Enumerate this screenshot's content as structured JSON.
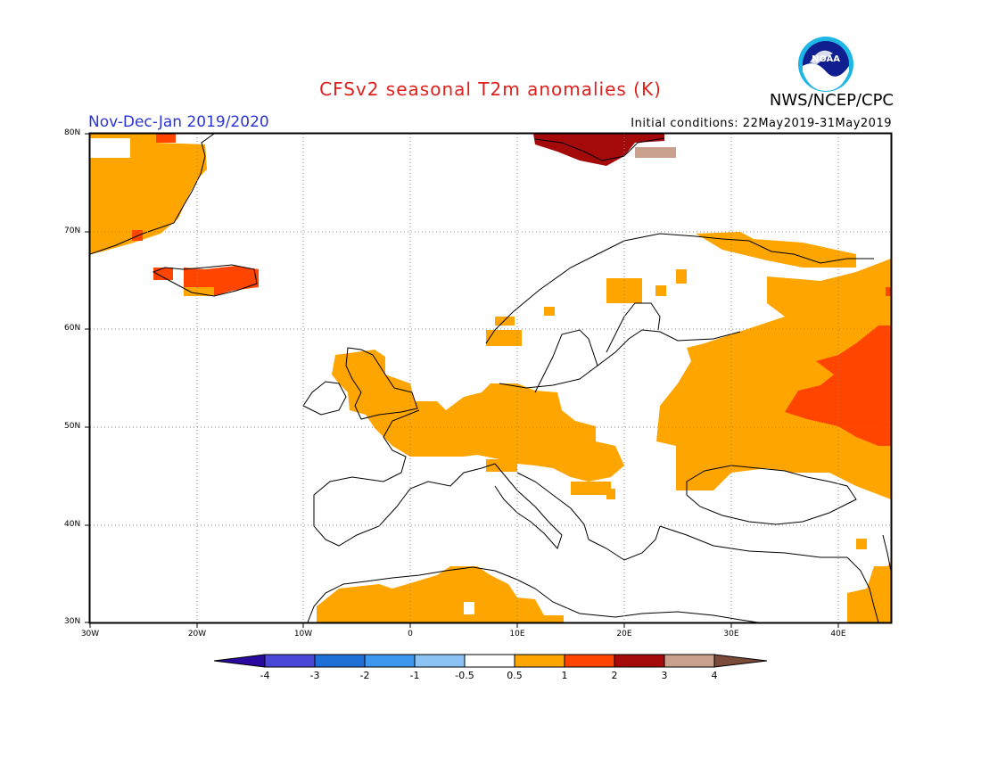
{
  "header": {
    "title": "CFSv2 seasonal T2m anomalies (K)",
    "agency": "NWS/NCEP/CPC",
    "logo_text": "NOAA",
    "period": "Nov-Dec-Jan 2019/2020",
    "initial_conditions": "Initial conditions: 22May2019-31May2019"
  },
  "map": {
    "lat_ticks": [
      "80N",
      "70N",
      "60N",
      "50N",
      "40N",
      "30N"
    ],
    "lon_ticks": [
      "30W",
      "20W",
      "10W",
      "0",
      "10E",
      "20E",
      "30E",
      "40E"
    ],
    "lon_range": [
      -30,
      45
    ],
    "lat_range": [
      30,
      80
    ],
    "grid": "dotted"
  },
  "colorbar": {
    "labels": [
      "-4",
      "-3",
      "-2",
      "-1",
      "-0.5",
      "0.5",
      "1",
      "2",
      "3",
      "4"
    ],
    "colors": [
      "#2a0a9e",
      "#4a46d6",
      "#1e6fd6",
      "#3e97ee",
      "#8cc2f4",
      "#ffffff",
      "#ffa500",
      "#ff4500",
      "#a50a0a",
      "#c8a08c",
      "#7a4a3a"
    ]
  },
  "colors": {
    "orange": "#ffa500",
    "red": "#ff4500",
    "darkred": "#a50a0a",
    "tan": "#c8a08c"
  }
}
